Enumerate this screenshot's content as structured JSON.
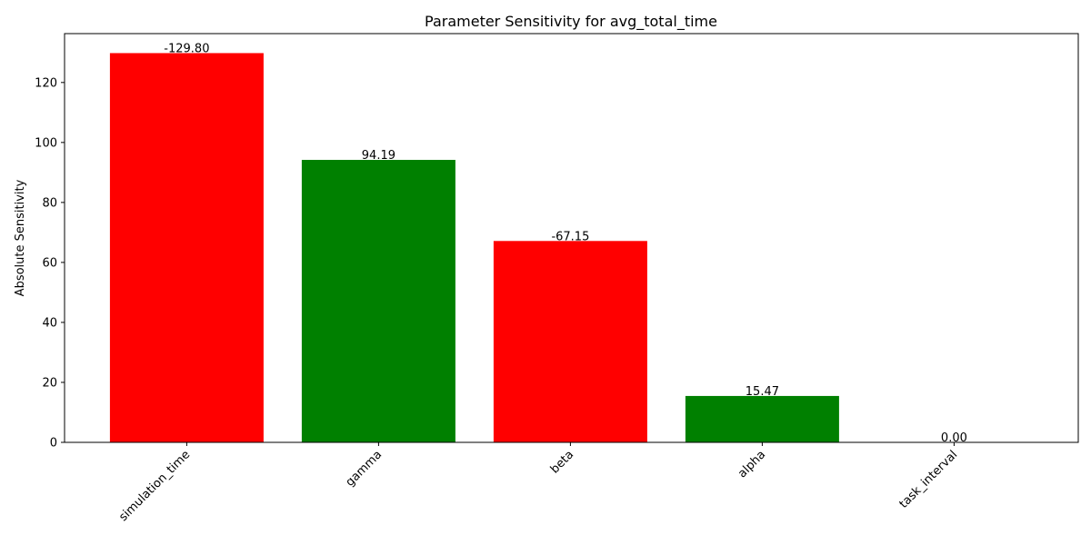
{
  "chart_data": {
    "type": "bar",
    "title": "Parameter Sensitivity for avg_total_time",
    "xlabel": "",
    "ylabel": "Absolute Sensitivity",
    "categories": [
      "simulation_time",
      "gamma",
      "beta",
      "alpha",
      "task_interval"
    ],
    "values": [
      129.8,
      94.19,
      67.15,
      15.47,
      0.0
    ],
    "labels": [
      "-129.80",
      "94.19",
      "-67.15",
      "15.47",
      "0.00"
    ],
    "colors": [
      "#ff0000",
      "#008000",
      "#ff0000",
      "#008000",
      "#008000"
    ],
    "ylim": [
      0,
      136.3
    ],
    "yticks": [
      0,
      20,
      40,
      60,
      80,
      100,
      120
    ],
    "grid": false,
    "legend": "none"
  }
}
